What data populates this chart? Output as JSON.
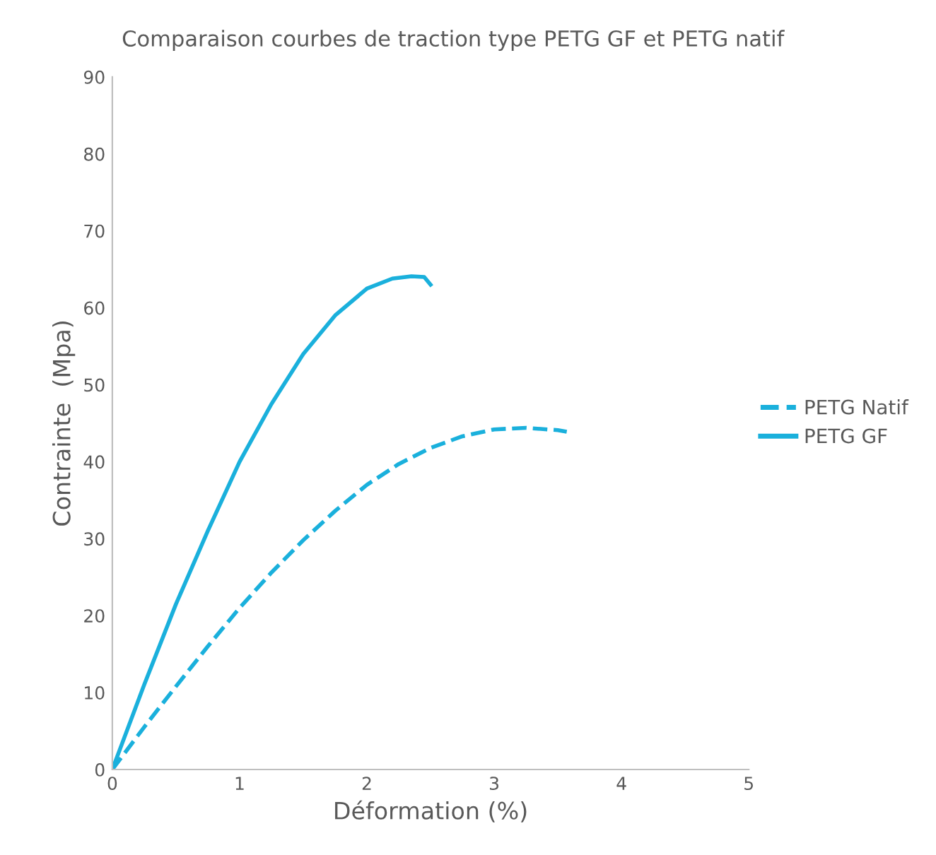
{
  "chart_data": {
    "type": "line",
    "title": "Comparaison courbes de traction type PETG GF et PETG natif",
    "xlabel": "Déformation (%)",
    "ylabel": "Contrainte  (Mpa)",
    "series": [
      {
        "name": "PETG Natif",
        "color": "#1ab0dc",
        "line_style": "dashed",
        "x": [
          0,
          0.25,
          0.5,
          0.75,
          1.0,
          1.25,
          1.5,
          1.75,
          2.0,
          2.25,
          2.5,
          2.75,
          3.0,
          3.25,
          3.5,
          3.57
        ],
        "values": [
          0,
          5.5,
          10.8,
          16,
          21,
          25.6,
          29.8,
          33.6,
          37,
          39.7,
          41.8,
          43.3,
          44.2,
          44.4,
          44.1,
          43.9
        ]
      },
      {
        "name": "PETG GF",
        "color": "#1ab0dc",
        "line_style": "solid",
        "x": [
          0,
          0.25,
          0.5,
          0.75,
          1.0,
          1.25,
          1.5,
          1.75,
          2.0,
          2.2,
          2.35,
          2.45,
          2.5
        ],
        "values": [
          0,
          11,
          21.5,
          31,
          40,
          47.5,
          54,
          59,
          62.5,
          63.8,
          64.1,
          64,
          63
        ]
      }
    ],
    "xlim": [
      0,
      5
    ],
    "xticks": [
      0,
      1,
      2,
      3,
      4,
      5
    ],
    "ylim": [
      0,
      90
    ],
    "yticks": [
      0,
      10,
      20,
      30,
      40,
      50,
      60,
      70,
      80,
      90
    ],
    "grid": false,
    "legend": "right"
  }
}
